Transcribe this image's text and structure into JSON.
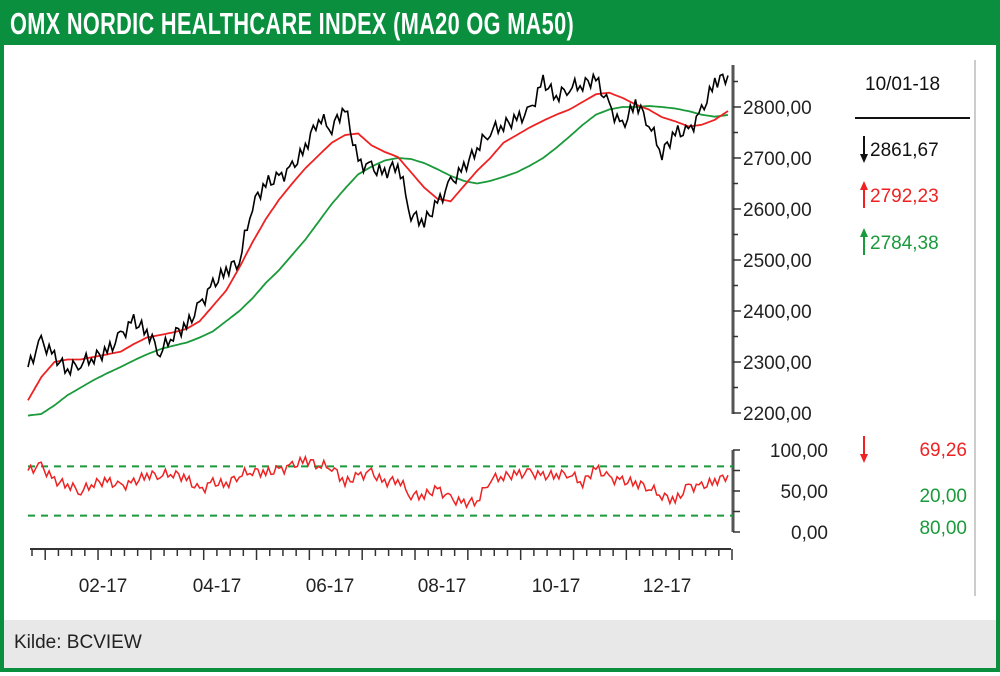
{
  "title": "OMX NORDIC HEALTHCARE INDEX (MA20 OG MA50)",
  "source": "Kilde: BCVIEW",
  "colors": {
    "brand": "#0a8f3f",
    "price": "#000000",
    "ma20": "#ee2222",
    "ma50": "#1a9a3a",
    "rsi": "#ee2222",
    "rsi_bands": "#1a9a3a"
  },
  "legend": {
    "date": "10/01-18",
    "price_value": "2861,67",
    "price_arrow": "down",
    "ma20_value": "2792,23",
    "ma20_arrow": "up",
    "ma50_value": "2784,38",
    "ma50_arrow": "up",
    "rsi_value": "69,26",
    "rsi_arrow": "down",
    "rsi_low": "20,00",
    "rsi_high": "80,00"
  },
  "chart_data": [
    {
      "type": "line",
      "title": "OMX NORDIC HEALTHCARE INDEX (MA20 OG MA50)",
      "x_ticks": [
        "02-17",
        "04-17",
        "06-17",
        "08-17",
        "10-17",
        "12-17"
      ],
      "y_ticks": [
        "2800,00",
        "2700,00",
        "2600,00",
        "2500,00",
        "2400,00",
        "2300,00",
        "2200,00"
      ],
      "ylim": [
        2200,
        2880
      ],
      "x_range": [
        "2017-01-02",
        "2018-01-10"
      ],
      "grid": false,
      "series": [
        {
          "name": "",
          "key": "price",
          "values": [
            2290,
            2340,
            2310,
            2285,
            2300,
            2310,
            2320,
            2350,
            2380,
            2360,
            2320,
            2355,
            2370,
            2410,
            2450,
            2480,
            2500,
            2610,
            2650,
            2660,
            2680,
            2720,
            2780,
            2760,
            2800,
            2690,
            2680,
            2670,
            2690,
            2590,
            2575,
            2610,
            2650,
            2680,
            2720,
            2755,
            2765,
            2775,
            2790,
            2850,
            2820,
            2840,
            2845,
            2855,
            2800,
            2760,
            2810,
            2770,
            2710,
            2750,
            2750,
            2790,
            2850,
            2861.67
          ]
        },
        {
          "name": "MA20",
          "key": "ma20",
          "values": [
            2225,
            2270,
            2300,
            2305,
            2305,
            2310,
            2315,
            2320,
            2335,
            2348,
            2353,
            2358,
            2365,
            2380,
            2410,
            2440,
            2485,
            2535,
            2580,
            2618,
            2650,
            2680,
            2705,
            2730,
            2745,
            2748,
            2725,
            2712,
            2702,
            2672,
            2642,
            2620,
            2615,
            2645,
            2675,
            2700,
            2730,
            2745,
            2760,
            2773,
            2785,
            2795,
            2810,
            2825,
            2828,
            2818,
            2805,
            2795,
            2780,
            2772,
            2762,
            2765,
            2775,
            2792.23
          ]
        },
        {
          "name": "MA50",
          "key": "ma50",
          "values": [
            2195,
            2198,
            2215,
            2235,
            2250,
            2265,
            2278,
            2290,
            2303,
            2315,
            2325,
            2332,
            2338,
            2348,
            2360,
            2380,
            2400,
            2425,
            2455,
            2480,
            2510,
            2540,
            2575,
            2610,
            2640,
            2668,
            2683,
            2695,
            2700,
            2698,
            2690,
            2678,
            2665,
            2655,
            2650,
            2655,
            2663,
            2672,
            2685,
            2700,
            2720,
            2742,
            2765,
            2785,
            2795,
            2800,
            2800,
            2802,
            2800,
            2797,
            2792,
            2785,
            2781,
            2784.38
          ]
        }
      ]
    },
    {
      "type": "line",
      "y_ticks": [
        "100,00",
        "50,00",
        "0,00"
      ],
      "ylim": [
        0,
        100
      ],
      "bands": [
        20,
        80
      ],
      "series": [
        {
          "name": "",
          "key": "rsi",
          "values": [
            75,
            80,
            62,
            58,
            50,
            60,
            62,
            55,
            60,
            70,
            70,
            72,
            65,
            50,
            60,
            58,
            70,
            75,
            72,
            75,
            80,
            88,
            82,
            80,
            60,
            68,
            72,
            60,
            65,
            45,
            45,
            52,
            40,
            35,
            38,
            65,
            68,
            70,
            72,
            68,
            70,
            72,
            60,
            78,
            65,
            62,
            60,
            55,
            45,
            38,
            55,
            55,
            62,
            69.26
          ]
        }
      ]
    }
  ]
}
